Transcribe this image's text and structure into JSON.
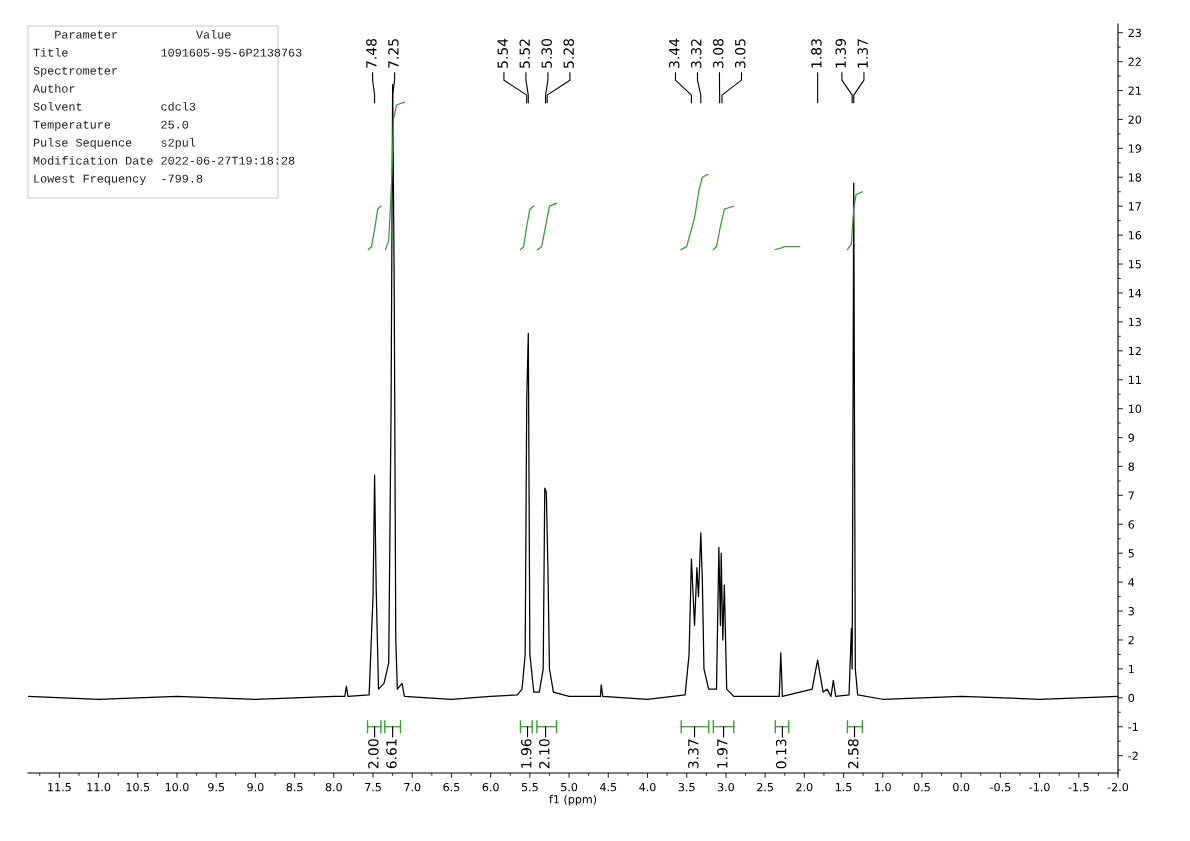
{
  "chart_data": {
    "type": "line",
    "xlabel": "f1 (ppm)",
    "xlim": [
      11.9,
      -2.0
    ],
    "ylim": [
      -2.6,
      23.3
    ],
    "xticks": [
      {
        "value": 11.5,
        "label": "11.5"
      },
      {
        "value": 11.0,
        "label": "11.0"
      },
      {
        "value": 10.5,
        "label": "10.5"
      },
      {
        "value": 10.0,
        "label": "10.0"
      },
      {
        "value": 9.5,
        "label": "9.5"
      },
      {
        "value": 9.0,
        "label": "9.0"
      },
      {
        "value": 8.5,
        "label": "8.5"
      },
      {
        "value": 8.0,
        "label": "8.0"
      },
      {
        "value": 7.5,
        "label": "7.5"
      },
      {
        "value": 7.0,
        "label": "7.0"
      },
      {
        "value": 6.5,
        "label": "6.5"
      },
      {
        "value": 6.0,
        "label": "6.0"
      },
      {
        "value": 5.5,
        "label": "5.5"
      },
      {
        "value": 5.0,
        "label": "5.0"
      },
      {
        "value": 4.5,
        "label": "4.5"
      },
      {
        "value": 4.0,
        "label": "4.0"
      },
      {
        "value": 3.5,
        "label": "3.5"
      },
      {
        "value": 3.0,
        "label": "3.0"
      },
      {
        "value": 2.5,
        "label": "2.5"
      },
      {
        "value": 2.0,
        "label": "2.0"
      },
      {
        "value": 1.5,
        "label": "1.5"
      },
      {
        "value": 1.0,
        "label": "1.0"
      },
      {
        "value": 0.5,
        "label": "0.5"
      },
      {
        "value": 0.0,
        "label": "0.0"
      },
      {
        "value": -0.5,
        "label": "-0.5"
      },
      {
        "value": -1.0,
        "label": "-1.0"
      },
      {
        "value": -1.5,
        "label": "-1.5"
      },
      {
        "value": -2.0,
        "label": "-2.0"
      }
    ],
    "yticks": [
      -2,
      -1,
      0,
      1,
      2,
      3,
      4,
      5,
      6,
      7,
      8,
      9,
      10,
      11,
      12,
      13,
      14,
      15,
      16,
      17,
      18,
      19,
      20,
      21,
      22,
      23
    ],
    "grid": false,
    "marker": "none",
    "line_style": "solid",
    "series": [
      {
        "color": "#000000",
        "x": [
          11.9,
          11.0,
          10.0,
          9.0,
          8.0,
          7.86,
          7.84,
          7.82,
          7.55,
          7.5,
          7.48,
          7.46,
          7.43,
          7.36,
          7.3,
          7.27,
          7.25,
          7.23,
          7.21,
          7.19,
          7.13,
          7.1,
          6.5,
          6.0,
          5.66,
          5.6,
          5.56,
          5.54,
          5.52,
          5.5,
          5.45,
          5.38,
          5.33,
          5.31,
          5.29,
          5.27,
          5.25,
          5.2,
          5.0,
          4.6,
          4.59,
          4.57,
          4.0,
          3.52,
          3.47,
          3.44,
          3.4,
          3.37,
          3.35,
          3.32,
          3.3,
          3.28,
          3.22,
          3.12,
          3.09,
          3.07,
          3.06,
          3.04,
          3.02,
          2.99,
          2.9,
          2.32,
          2.3,
          2.28,
          1.9,
          1.86,
          1.83,
          1.8,
          1.76,
          1.71,
          1.66,
          1.63,
          1.6,
          1.43,
          1.4,
          1.39,
          1.37,
          1.35,
          1.32,
          1.0,
          0.0,
          -1.0,
          -2.0
        ],
        "values": [
          0.05,
          -0.05,
          0.05,
          -0.05,
          0.05,
          0.05,
          0.4,
          0.05,
          0.1,
          3.5,
          7.7,
          3.8,
          0.3,
          0.5,
          1.2,
          10,
          21.2,
          14.3,
          2.0,
          0.3,
          0.5,
          0.05,
          -0.05,
          0.05,
          0.1,
          0.3,
          1.5,
          10.3,
          12.6,
          1.5,
          0.2,
          0.2,
          1.0,
          7.25,
          7.1,
          4.5,
          1.0,
          0.2,
          0.05,
          0.05,
          0.45,
          0.05,
          -0.05,
          0.1,
          1.5,
          4.8,
          2.5,
          4.5,
          3.5,
          5.7,
          4.0,
          1.0,
          0.3,
          0.3,
          5.2,
          2.5,
          5.0,
          2.0,
          3.9,
          0.3,
          0.05,
          0.05,
          1.55,
          0.05,
          0.3,
          0.9,
          1.3,
          0.8,
          0.2,
          0.3,
          0.05,
          0.6,
          0.05,
          0.1,
          2.4,
          1.0,
          17.8,
          1.0,
          0.1,
          -0.05,
          0.05,
          -0.05,
          0.05
        ]
      },
      {
        "color": "#3a9a3a",
        "x": [
          7.56,
          7.52,
          7.48,
          7.44,
          7.4
        ],
        "values": [
          15.5,
          15.6,
          16.2,
          16.9,
          17.0
        ]
      },
      {
        "color": "#3a9a3a",
        "x": [
          7.34,
          7.3,
          7.26,
          7.24,
          7.2,
          7.1
        ],
        "values": [
          15.5,
          15.8,
          18.0,
          20.0,
          20.5,
          20.6
        ]
      },
      {
        "color": "#3a9a3a",
        "x": [
          5.62,
          5.58,
          5.54,
          5.5,
          5.45
        ],
        "values": [
          15.5,
          15.6,
          16.3,
          16.9,
          17.0
        ]
      },
      {
        "color": "#3a9a3a",
        "x": [
          5.4,
          5.35,
          5.3,
          5.25,
          5.16
        ],
        "values": [
          15.5,
          15.6,
          16.3,
          17.0,
          17.1
        ]
      },
      {
        "color": "#3a9a3a",
        "x": [
          3.57,
          3.5,
          3.44,
          3.4,
          3.34,
          3.3,
          3.23
        ],
        "values": [
          15.5,
          15.6,
          16.2,
          16.6,
          17.6,
          18.0,
          18.1
        ]
      },
      {
        "color": "#3a9a3a",
        "x": [
          3.16,
          3.12,
          3.07,
          3.02,
          2.9
        ],
        "values": [
          15.5,
          15.6,
          16.3,
          16.9,
          17.0
        ]
      },
      {
        "color": "#3a9a3a",
        "x": [
          2.37,
          2.3,
          2.25,
          2.06
        ],
        "values": [
          15.5,
          15.55,
          15.6,
          15.6
        ]
      },
      {
        "color": "#3a9a3a",
        "x": [
          1.45,
          1.4,
          1.37,
          1.34,
          1.26
        ],
        "values": [
          15.5,
          15.7,
          16.9,
          17.4,
          17.5
        ]
      },
      {
        "color": "#3a9a3a",
        "x": [
          7.57,
          7.4
        ],
        "values": [
          -1.0,
          -1.0
        ]
      },
      {
        "color": "#3a9a3a",
        "x": [
          7.35,
          7.15
        ],
        "values": [
          -1.0,
          -1.0
        ]
      },
      {
        "color": "#3a9a3a",
        "x": [
          5.62,
          5.47
        ],
        "values": [
          -1.0,
          -1.0
        ]
      },
      {
        "color": "#3a9a3a",
        "x": [
          5.41,
          5.16
        ],
        "values": [
          -1.0,
          -1.0
        ]
      },
      {
        "color": "#3a9a3a",
        "x": [
          3.57,
          3.22
        ],
        "values": [
          -1.0,
          -1.0
        ]
      },
      {
        "color": "#3a9a3a",
        "x": [
          3.16,
          2.9
        ],
        "values": [
          -1.0,
          -1.0
        ]
      },
      {
        "color": "#3a9a3a",
        "x": [
          2.37,
          2.2
        ],
        "values": [
          -1.0,
          -1.0
        ]
      },
      {
        "color": "#3a9a3a",
        "x": [
          1.45,
          1.26
        ],
        "values": [
          -1.0,
          -1.0
        ]
      }
    ],
    "annotations": [
      {
        "text": "7.48",
        "x": 7.48
      },
      {
        "text": "7.25",
        "x": 7.25
      },
      {
        "text": "5.54",
        "x": 5.54
      },
      {
        "text": "5.52",
        "x": 5.52
      },
      {
        "text": "5.30",
        "x": 5.3
      },
      {
        "text": "5.28",
        "x": 5.28
      },
      {
        "text": "3.44",
        "x": 3.44
      },
      {
        "text": "3.32",
        "x": 3.32
      },
      {
        "text": "3.08",
        "x": 3.08
      },
      {
        "text": "3.05",
        "x": 3.05
      },
      {
        "text": "1.83",
        "x": 1.83
      },
      {
        "text": "1.39",
        "x": 1.39
      },
      {
        "text": "1.37",
        "x": 1.37
      },
      {
        "text": "2.00",
        "x": 7.48,
        "y": -1.0
      },
      {
        "text": "6.61",
        "x": 7.25,
        "y": -1.0
      },
      {
        "text": "1.96",
        "x": 5.53,
        "y": -1.0
      },
      {
        "text": "2.10",
        "x": 5.3,
        "y": -1.0
      },
      {
        "text": "3.37",
        "x": 3.4,
        "y": -1.0
      },
      {
        "text": "1.97",
        "x": 3.03,
        "y": -1.0
      },
      {
        "text": "0.13",
        "x": 2.28,
        "y": -1.0
      },
      {
        "text": "2.58",
        "x": 1.36,
        "y": -1.0
      },
      "   Parameter           Value",
      "Title             1091605-95-6P2138763",
      "Spectrometer",
      "Author",
      "Solvent           cdcl3",
      "Temperature       25.0",
      "Pulse Sequence    s2pul",
      "Modification Date 2022-06-27T19:18:28",
      "Lowest Frequency  -799.8"
    ]
  }
}
